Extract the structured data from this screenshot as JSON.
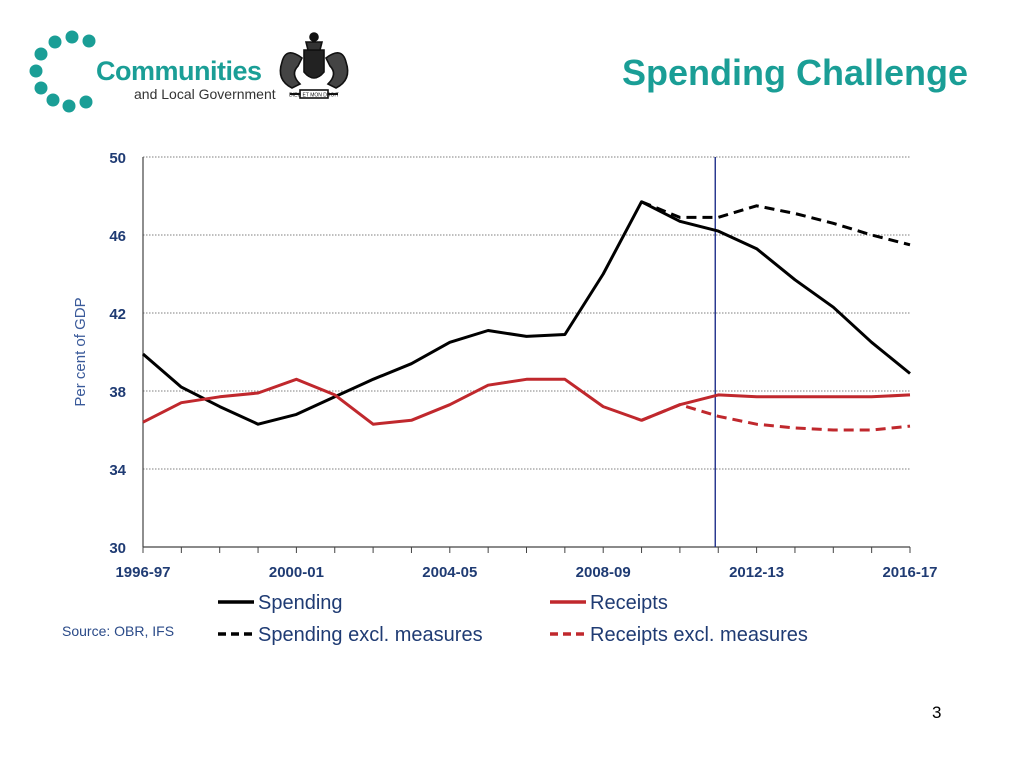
{
  "logo": {
    "name_line1": "Communities",
    "name_line2": "and Local Government",
    "crest_icon": "royal-coat-of-arms-icon",
    "crest_motto": "DIEU ET MON DROIT",
    "brand_color": "#1a9e96"
  },
  "title": "Spending Challenge",
  "source": "Source: OBR, IFS",
  "page_number": "3",
  "chart_data": {
    "type": "line",
    "ylabel": "Per cent of GDP",
    "xlabel": "",
    "ylim": [
      30,
      50
    ],
    "yticks": [
      30,
      34,
      38,
      42,
      46,
      50
    ],
    "grid": "horizontal dotted",
    "marker_line": "2011-12",
    "categories": [
      "1996-97",
      "1997-98",
      "1998-99",
      "1999-00",
      "2000-01",
      "2001-02",
      "2002-03",
      "2003-04",
      "2004-05",
      "2005-06",
      "2006-07",
      "2007-08",
      "2008-09",
      "2009-10",
      "2010-11",
      "2011-12",
      "2012-13",
      "2013-14",
      "2014-15",
      "2015-16",
      "2016-17"
    ],
    "xtick_labels": [
      "1996-97",
      "",
      "",
      "",
      "2000-01",
      "",
      "",
      "",
      "2004-05",
      "",
      "",
      "",
      "2008-09",
      "",
      "",
      "",
      "2012-13",
      "",
      "",
      "",
      "2016-17"
    ],
    "legend_position": "bottom",
    "series": [
      {
        "name": "Spending",
        "color": "#000000",
        "dash": "solid",
        "values": [
          39.9,
          38.2,
          37.2,
          36.3,
          36.8,
          37.7,
          38.6,
          39.4,
          40.5,
          41.1,
          40.8,
          40.9,
          44.0,
          47.7,
          46.7,
          46.2,
          45.3,
          43.7,
          42.3,
          40.5,
          38.9
        ]
      },
      {
        "name": "Receipts",
        "color": "#c0282d",
        "dash": "solid",
        "values": [
          36.4,
          37.4,
          37.7,
          37.9,
          38.6,
          37.8,
          36.3,
          36.5,
          37.3,
          38.3,
          38.6,
          38.6,
          37.2,
          36.5,
          37.3,
          37.8,
          37.7,
          37.7,
          37.7,
          37.7,
          37.8
        ]
      },
      {
        "name": "Spending excl. measures",
        "color": "#000000",
        "dash": "dashed",
        "values": [
          null,
          null,
          null,
          null,
          null,
          null,
          null,
          null,
          null,
          null,
          null,
          null,
          null,
          47.7,
          46.9,
          46.9,
          47.5,
          47.1,
          46.6,
          46.0,
          45.5
        ]
      },
      {
        "name": "Receipts excl. measures",
        "color": "#c0282d",
        "dash": "dashed",
        "values": [
          null,
          null,
          null,
          null,
          null,
          null,
          null,
          null,
          null,
          null,
          null,
          null,
          null,
          36.5,
          37.3,
          36.7,
          36.3,
          36.1,
          36.0,
          36.0,
          36.2
        ]
      }
    ]
  }
}
